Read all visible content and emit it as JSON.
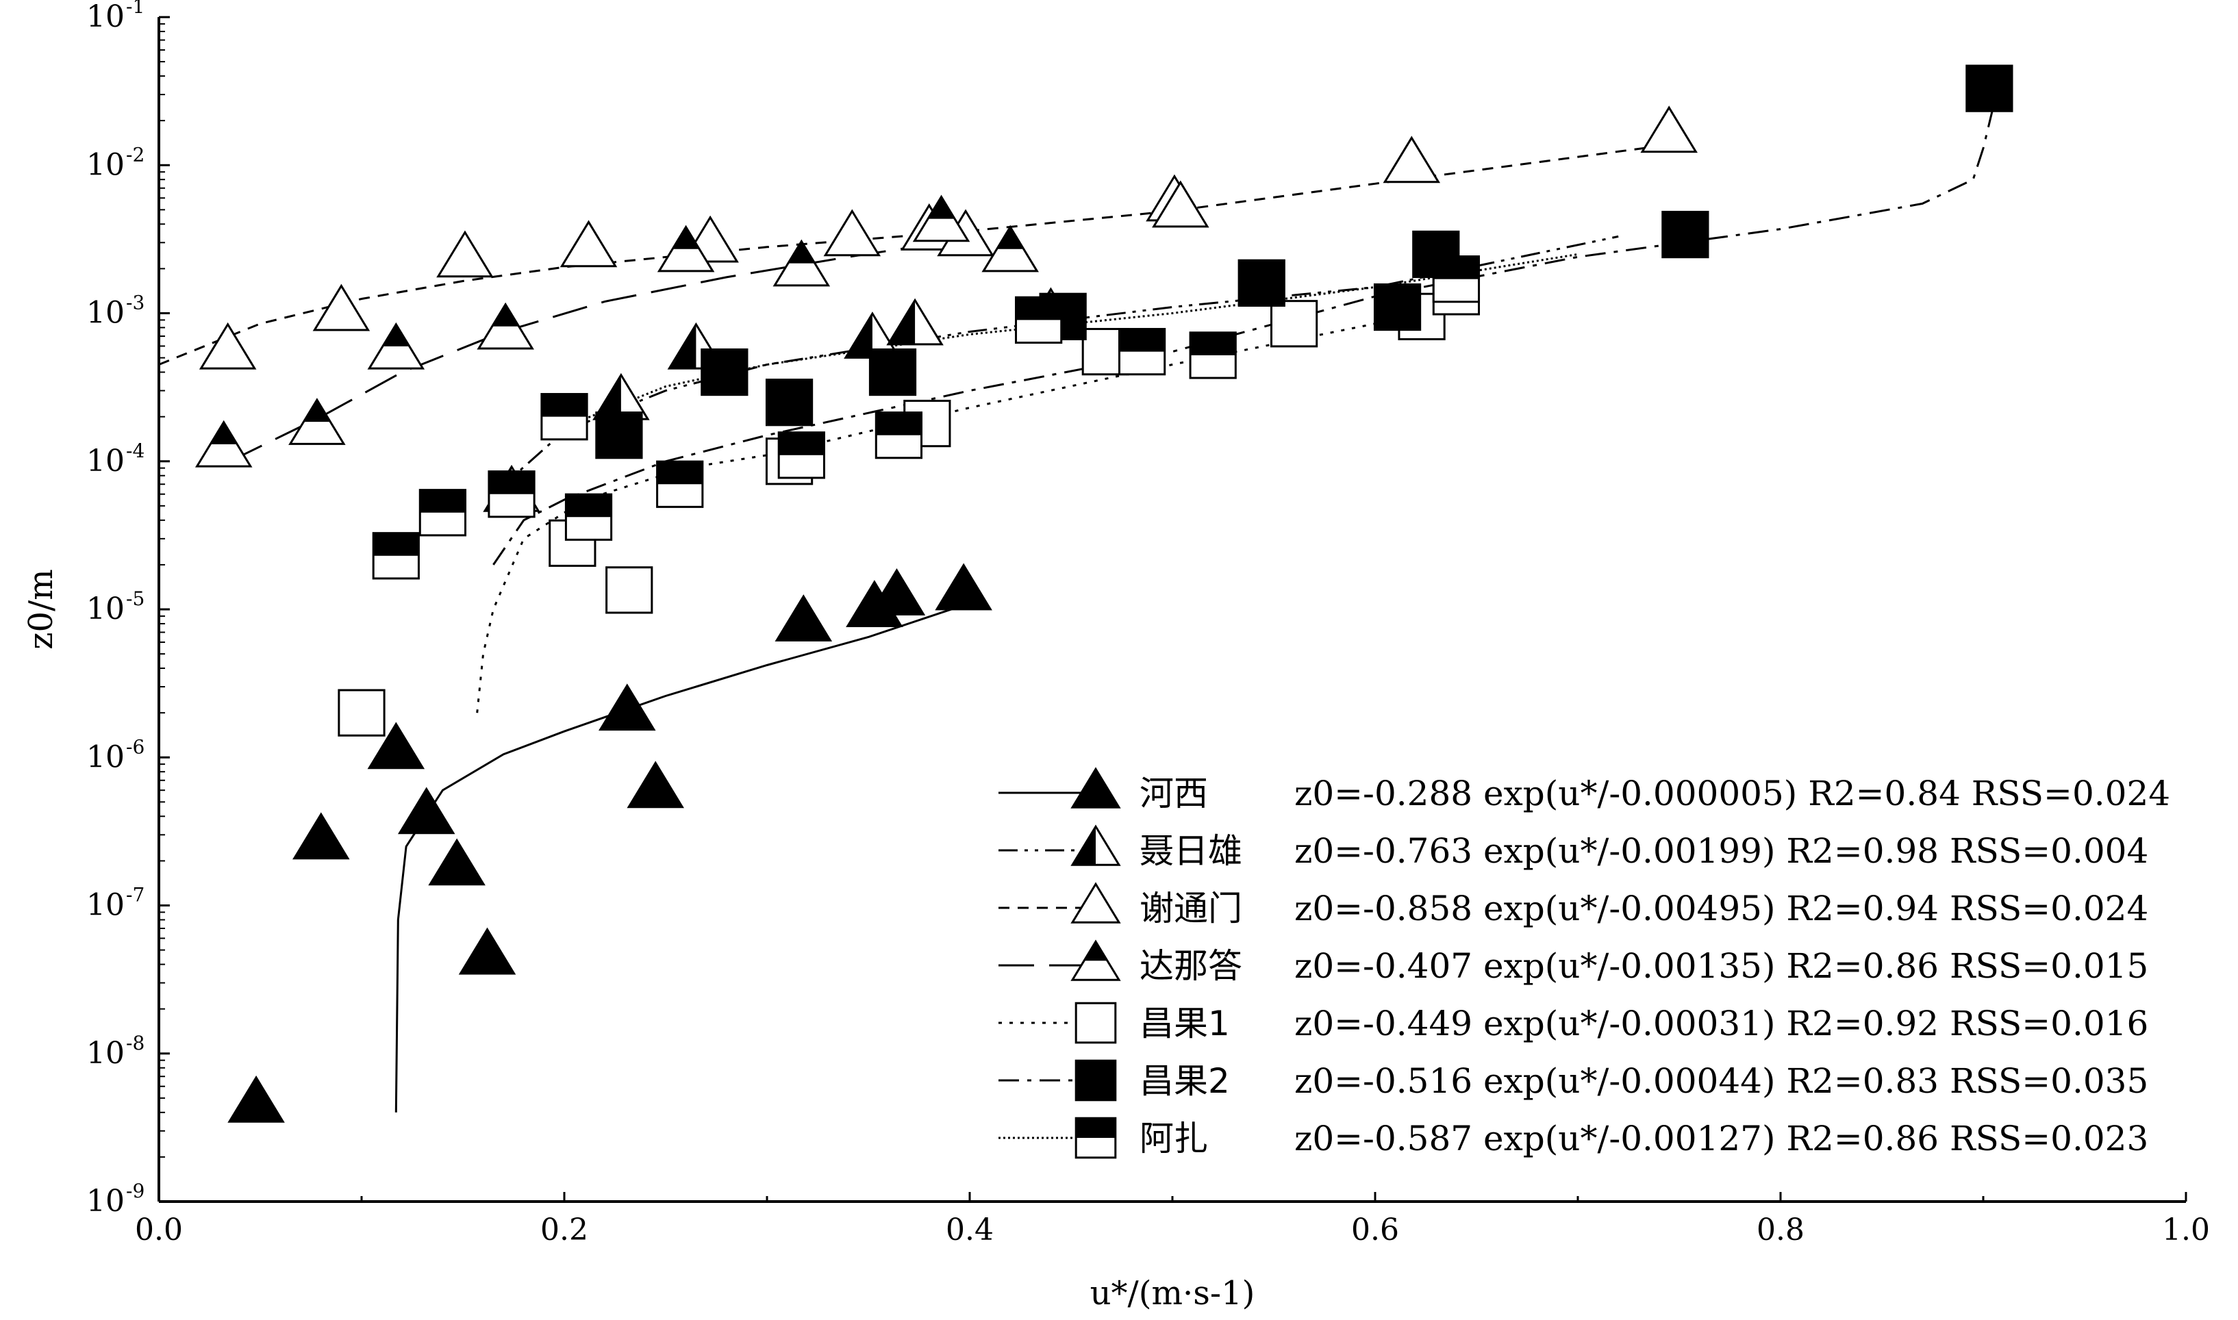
{
  "chart_data": {
    "type": "scatter",
    "xlabel": "u*/(m·s-1)",
    "ylabel": "z0/m",
    "xlim": [
      0.0,
      1.0
    ],
    "ylim": [
      1e-09,
      0.1
    ],
    "y_scale": "log",
    "x_ticks": [
      "0.0",
      "0.2",
      "0.4",
      "0.6",
      "0.8",
      "1.0"
    ],
    "y_ticks": [
      {
        "base": "10",
        "exp": "-9"
      },
      {
        "base": "10",
        "exp": "-8"
      },
      {
        "base": "10",
        "exp": "-7"
      },
      {
        "base": "10",
        "exp": "-6"
      },
      {
        "base": "10",
        "exp": "-5"
      },
      {
        "base": "10",
        "exp": "-4"
      },
      {
        "base": "10",
        "exp": "-3"
      },
      {
        "base": "10",
        "exp": "-2"
      },
      {
        "base": "10",
        "exp": "-1"
      }
    ],
    "grid": false,
    "legend_position": "bottom-right",
    "series": [
      {
        "name": "河西",
        "marker": "triangle-filled",
        "line_style": "solid",
        "equation": "z0=-0.288 exp(u*/-0.000005)  R2=0.84  RSS=0.024",
        "points": [
          [
            0.048,
            4.5e-09
          ],
          [
            0.08,
            2.7e-07
          ],
          [
            0.117,
            1.1e-06
          ],
          [
            0.132,
            4e-07
          ],
          [
            0.147,
            1.8e-07
          ],
          [
            0.162,
            4.5e-08
          ],
          [
            0.231,
            2e-06
          ],
          [
            0.245,
            6e-07
          ],
          [
            0.318,
            8e-06
          ],
          [
            0.353,
            1e-05
          ],
          [
            0.364,
            1.2e-05
          ],
          [
            0.397,
            1.3e-05
          ]
        ],
        "fit": [
          [
            0.117,
            4e-09
          ],
          [
            0.118,
            8e-08
          ],
          [
            0.122,
            2.5e-07
          ],
          [
            0.14,
            6e-07
          ],
          [
            0.17,
            1.05e-06
          ],
          [
            0.2,
            1.5e-06
          ],
          [
            0.25,
            2.6e-06
          ],
          [
            0.3,
            4.2e-06
          ],
          [
            0.35,
            6.5e-06
          ],
          [
            0.4,
            1.1e-05
          ]
        ]
      },
      {
        "name": "聂日雄",
        "marker": "triangle-half-left",
        "line_style": "dash-dot-dot",
        "equation": "z0=-0.763 exp(u*/-0.00199)  R2=0.98  RSS=0.004",
        "points": [
          [
            0.174,
            6e-05
          ],
          [
            0.228,
            0.00025
          ],
          [
            0.265,
            0.00055
          ],
          [
            0.352,
            0.00065
          ],
          [
            0.373,
            0.0008
          ],
          [
            0.44,
            0.00095
          ]
        ],
        "fit": [
          [
            0.165,
            6e-05
          ],
          [
            0.2,
            0.00016
          ],
          [
            0.25,
            0.0003
          ],
          [
            0.3,
            0.00045
          ],
          [
            0.4,
            0.00075
          ],
          [
            0.5,
            0.0011
          ],
          [
            0.6,
            0.0015
          ],
          [
            0.72,
            0.0033
          ]
        ]
      },
      {
        "name": "谢通门",
        "marker": "triangle-open",
        "line_style": "short-dash",
        "equation": "z0=-0.858 exp(u*/-0.00495)  R2=0.94  RSS=0.024",
        "points": [
          [
            0.034,
            0.00055
          ],
          [
            0.09,
            0.001
          ],
          [
            0.151,
            0.0023
          ],
          [
            0.212,
            0.0027
          ],
          [
            0.272,
            0.0029
          ],
          [
            0.342,
            0.0032
          ],
          [
            0.38,
            0.0035
          ],
          [
            0.398,
            0.0032
          ],
          [
            0.501,
            0.0055
          ],
          [
            0.504,
            0.005
          ],
          [
            0.618,
            0.01
          ],
          [
            0.745,
            0.016
          ]
        ],
        "fit": [
          [
            0.0,
            0.00045
          ],
          [
            0.05,
            0.00085
          ],
          [
            0.1,
            0.00125
          ],
          [
            0.15,
            0.00165
          ],
          [
            0.2,
            0.00205
          ],
          [
            0.3,
            0.0028
          ],
          [
            0.4,
            0.0036
          ],
          [
            0.5,
            0.0049
          ],
          [
            0.6,
            0.0075
          ],
          [
            0.75,
            0.014
          ]
        ]
      },
      {
        "name": "达那答",
        "marker": "triangle-half-bottom",
        "line_style": "long-dash",
        "equation": "z0=-0.407 exp(u*/-0.00135)  R2=0.86  RSS=0.015",
        "points": [
          [
            0.032,
            0.00012
          ],
          [
            0.078,
            0.00017
          ],
          [
            0.117,
            0.00055
          ],
          [
            0.171,
            0.00075
          ],
          [
            0.26,
            0.0025
          ],
          [
            0.317,
            0.002
          ],
          [
            0.386,
            0.004
          ],
          [
            0.42,
            0.0025
          ]
        ],
        "fit": [
          [
            0.035,
            0.0001
          ],
          [
            0.08,
            0.0002
          ],
          [
            0.12,
            0.0004
          ],
          [
            0.17,
            0.00075
          ],
          [
            0.22,
            0.0012
          ],
          [
            0.28,
            0.00175
          ],
          [
            0.34,
            0.0024
          ],
          [
            0.4,
            0.0032
          ]
        ]
      },
      {
        "name": "昌果1",
        "marker": "square-open",
        "line_style": "dotted",
        "equation": "z0=-0.449 exp(u*/-0.00031)  R2=0.92  RSS=0.016",
        "points": [
          [
            0.1,
            2e-06
          ],
          [
            0.204,
            2.8e-05
          ],
          [
            0.232,
            1.35e-05
          ],
          [
            0.311,
            0.0001
          ],
          [
            0.379,
            0.00018
          ],
          [
            0.467,
            0.00055
          ],
          [
            0.56,
            0.00085
          ],
          [
            0.623,
            0.00095
          ],
          [
            0.64,
            0.0014
          ]
        ],
        "fit": [
          [
            0.157,
            2e-06
          ],
          [
            0.16,
            5e-06
          ],
          [
            0.165,
            1e-05
          ],
          [
            0.18,
            3e-05
          ],
          [
            0.21,
            5.5e-05
          ],
          [
            0.26,
            9e-05
          ],
          [
            0.3,
            0.00011
          ],
          [
            0.4,
            0.00023
          ],
          [
            0.5,
            0.00045
          ],
          [
            0.6,
            0.00085
          ],
          [
            0.645,
            0.0015
          ]
        ]
      },
      {
        "name": "昌果2",
        "marker": "square-filled",
        "line_style": "dash-dot",
        "equation": "z0=-0.516 exp(u*/-0.00044)  R2=0.83  RSS=0.035",
        "points": [
          [
            0.227,
            0.00015
          ],
          [
            0.279,
            0.0004
          ],
          [
            0.311,
            0.00025
          ],
          [
            0.362,
            0.0004
          ],
          [
            0.446,
            0.00095
          ],
          [
            0.544,
            0.0016
          ],
          [
            0.611,
            0.0011
          ],
          [
            0.63,
            0.0025
          ],
          [
            0.753,
            0.0034
          ],
          [
            0.903,
            0.033
          ]
        ],
        "fit": [
          [
            0.165,
            2e-05
          ],
          [
            0.18,
            4e-05
          ],
          [
            0.2,
            5.5e-05
          ],
          [
            0.25,
            0.0001
          ],
          [
            0.3,
            0.00015
          ],
          [
            0.4,
            0.0003
          ],
          [
            0.5,
            0.00055
          ],
          [
            0.6,
            0.0013
          ],
          [
            0.7,
            0.0024
          ],
          [
            0.8,
            0.0037
          ],
          [
            0.87,
            0.0055
          ],
          [
            0.895,
            0.008
          ],
          [
            0.9,
            0.013
          ],
          [
            0.905,
            0.025
          ]
        ]
      },
      {
        "name": "阿扎",
        "marker": "square-half-bottom",
        "line_style": "fine-dotted",
        "equation": "z0=-0.587 exp(u*/-0.00127)  R2=0.86  RSS=0.023",
        "points": [
          [
            0.117,
            2.3e-05
          ],
          [
            0.14,
            4.5e-05
          ],
          [
            0.174,
            6e-05
          ],
          [
            0.2,
            0.0002
          ],
          [
            0.212,
            4.2e-05
          ],
          [
            0.257,
            7e-05
          ],
          [
            0.317,
            0.00011
          ],
          [
            0.365,
            0.00015
          ],
          [
            0.434,
            0.0009
          ],
          [
            0.485,
            0.00055
          ],
          [
            0.52,
            0.00052
          ],
          [
            0.64,
            0.0017
          ]
        ],
        "fit": [
          [
            0.19,
            0.00015
          ],
          [
            0.25,
            0.00032
          ],
          [
            0.3,
            0.00045
          ],
          [
            0.4,
            0.00072
          ],
          [
            0.5,
            0.001
          ],
          [
            0.6,
            0.0015
          ],
          [
            0.7,
            0.0025
          ]
        ]
      }
    ]
  }
}
